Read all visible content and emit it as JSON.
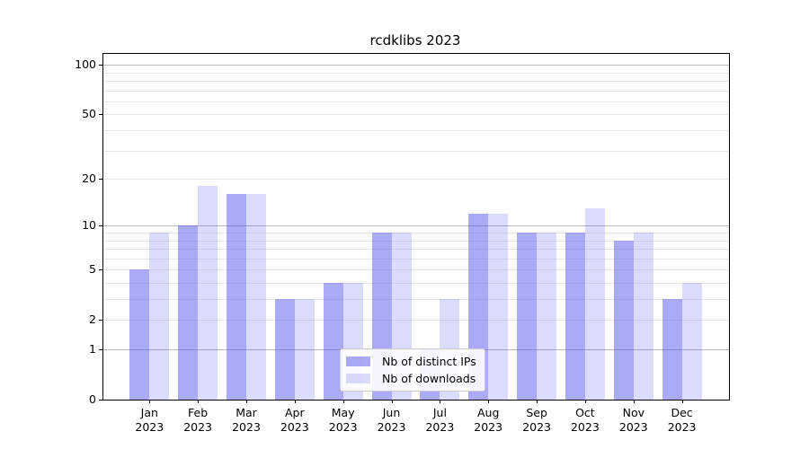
{
  "chart_data": {
    "type": "bar",
    "title": "rcdklibs 2023",
    "categories": [
      "Jan 2023",
      "Feb 2023",
      "Mar 2023",
      "Apr 2023",
      "May 2023",
      "Jun 2023",
      "Jul 2023",
      "Aug 2023",
      "Sep 2023",
      "Oct 2023",
      "Nov 2023",
      "Dec 2023"
    ],
    "category_months": [
      "Jan",
      "Feb",
      "Mar",
      "Apr",
      "May",
      "Jun",
      "Jul",
      "Aug",
      "Sep",
      "Oct",
      "Nov",
      "Dec"
    ],
    "category_year": "2023",
    "series": [
      {
        "name": "Nb of distinct IPs",
        "values": [
          5,
          10,
          16,
          3,
          4,
          9,
          1,
          12,
          9,
          9,
          8,
          3
        ],
        "color": "rgba(85,85,240,0.5)"
      },
      {
        "name": "Nb of downloads",
        "values": [
          9,
          18,
          16,
          3,
          4,
          9,
          3,
          12,
          9,
          13,
          9,
          4
        ],
        "color": "rgba(85,85,240,0.21)"
      }
    ],
    "xlabel": "",
    "ylabel": "",
    "yscale": "log10(value+1)",
    "ylim": [
      0,
      118
    ],
    "yticks": [
      0,
      1,
      2,
      5,
      10,
      20,
      50,
      100
    ],
    "major_gridlines": [
      1,
      10,
      100
    ],
    "minor_gridlines": [
      2,
      3,
      4,
      5,
      6,
      7,
      8,
      9,
      20,
      30,
      40,
      50,
      60,
      70,
      80,
      90
    ],
    "grid": "on",
    "legend_position": "lower center"
  },
  "colors": {
    "bar_base": "#5555f0",
    "bar_dark_on_white": "#aaaaf7",
    "bar_light_on_white": "#dbdbfc",
    "gridline_minor": "#e8e8e8",
    "gridline_major": "#b8b8b8",
    "axis": "#000000",
    "legend_border": "#cccccc"
  }
}
